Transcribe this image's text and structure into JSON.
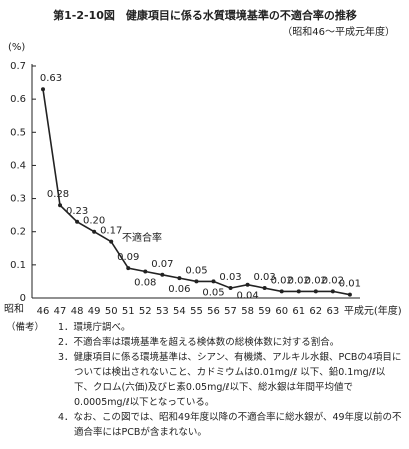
{
  "chart_data": {
    "type": "line",
    "title": "第1-2-10図　健康項目に係る水質環境基準の不適合率の推移",
    "subtitle": "（昭和46～平成元年度）",
    "ylabel": "(%)",
    "x_era_label": "昭和",
    "categories": [
      "46",
      "47",
      "48",
      "49",
      "50",
      "51",
      "52",
      "53",
      "54",
      "55",
      "56",
      "57",
      "58",
      "59",
      "60",
      "61",
      "62",
      "63",
      "平成元(年度)"
    ],
    "series": [
      {
        "name": "不適合率",
        "color": "#222222",
        "values": [
          0.63,
          0.28,
          0.23,
          0.2,
          0.17,
          0.09,
          0.08,
          0.07,
          0.06,
          0.05,
          0.05,
          0.03,
          0.04,
          0.03,
          0.02,
          0.02,
          0.02,
          0.02,
          0.01
        ],
        "value_labels": [
          "0.63",
          "0.28",
          "0.23",
          "0.20",
          "0.17",
          "0.09",
          "0.08",
          "0.07",
          "0.06",
          "0.05",
          "0.05",
          "0.03",
          "0.04",
          "0.03",
          "0.02",
          "0.02",
          "0.02",
          "0.02",
          "0.01"
        ]
      }
    ],
    "ylim": [
      0,
      0.7
    ],
    "yticks": [
      0,
      0.1,
      0.2,
      0.3,
      0.4,
      0.5,
      0.6,
      0.7
    ]
  },
  "notes": {
    "heading": "（備考）",
    "items": [
      "1．環境庁調べ。",
      "2．不適合率は環境基準を超える検体数の総検体数に対する割合。",
      "3．健康項目に係る環境基準は、シアン、有機燐、アルキル水銀、PCBの4項目については検出されないこと、カドミウムは0.01mg/ℓ 以下、鉛0.1mg/ℓ以下、クロム(六価)及びヒ素0.05mg/ℓ以下、総水銀は年間平均値で0.0005mg/ℓ以下となっている。",
      "4．なお、この図では、昭和49年度以降の不適合率に総水銀が、49年度以前の不適合率にはPCBが含まれない。"
    ]
  }
}
